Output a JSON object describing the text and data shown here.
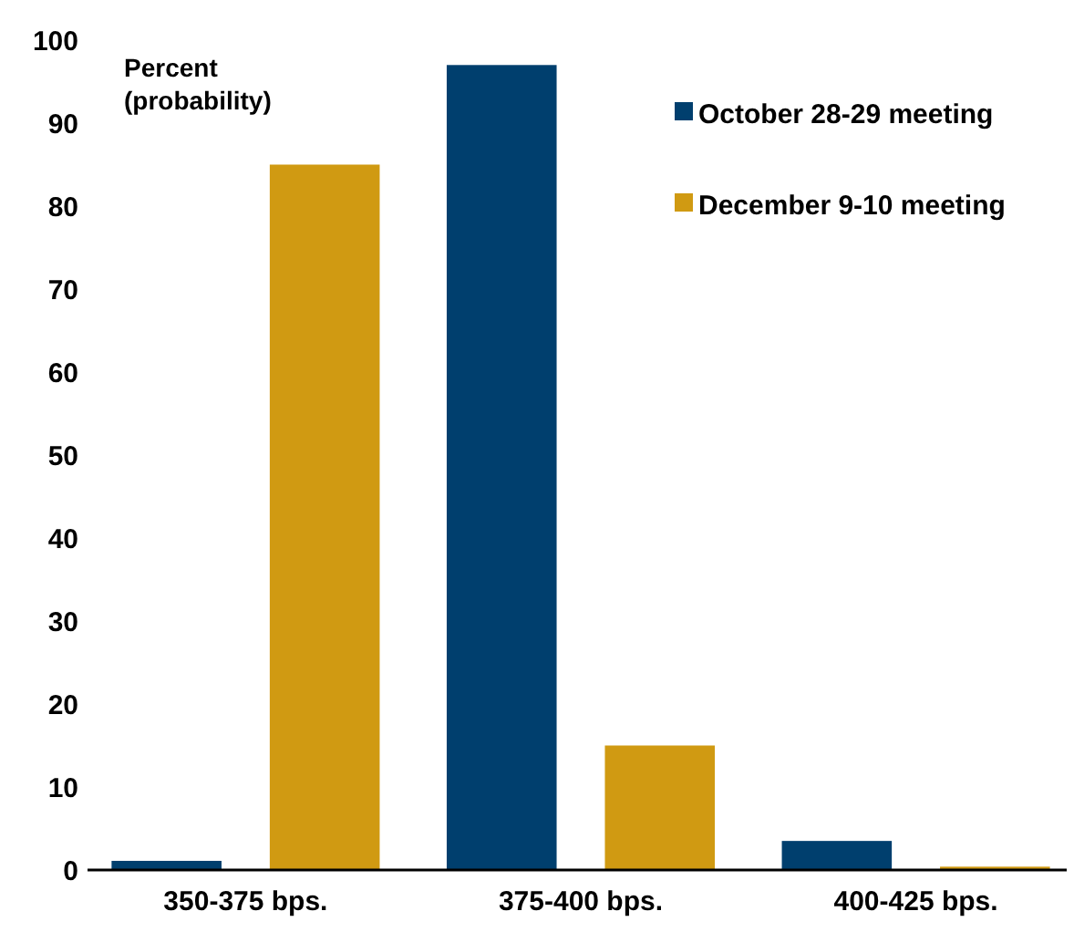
{
  "chart_data": {
    "type": "bar",
    "ylabel": "Percent\n(probability)",
    "categories": [
      "350-375 bps.",
      "375-400 bps.",
      "400-425 bps."
    ],
    "series": [
      {
        "name": "October 28-29 meeting",
        "color": "#003f6e",
        "values": [
          1.1,
          97,
          3.5
        ]
      },
      {
        "name": "December 9-10 meeting",
        "color": "#d09a12",
        "values": [
          85,
          15,
          0.4
        ]
      }
    ],
    "ylim": [
      0,
      100
    ],
    "yticks": [
      0,
      10,
      20,
      30,
      40,
      50,
      60,
      70,
      80,
      90,
      100
    ],
    "grid": false,
    "legend": "top right"
  }
}
